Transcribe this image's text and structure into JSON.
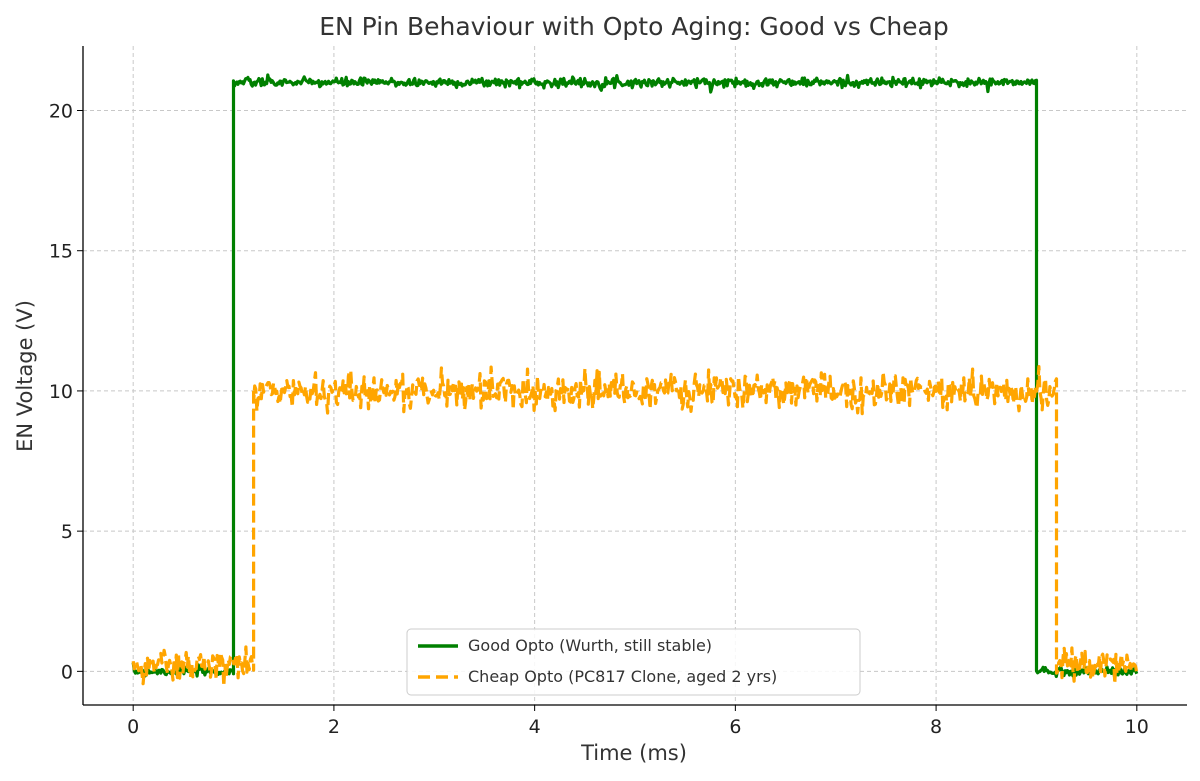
{
  "chart_data": {
    "type": "line",
    "title": "EN Pin Behaviour with Opto Aging: Good vs Cheap",
    "xlabel": "Time (ms)",
    "ylabel": "EN Voltage (V)",
    "xlim": [
      -0.5,
      10.5
    ],
    "ylim": [
      -1.2,
      22.3
    ],
    "xticks": [
      0,
      2,
      4,
      6,
      8,
      10
    ],
    "yticks": [
      0,
      5,
      10,
      15,
      20
    ],
    "grid": true,
    "legend_position": "bottom-center",
    "series": [
      {
        "name": "Good Opto (Wurth, still stable)",
        "color": "#008000",
        "style": "solid",
        "x": [
          0,
          1.0,
          1.0,
          9.0,
          9.0,
          10
        ],
        "y": [
          0,
          0,
          21,
          21,
          0,
          0
        ],
        "noise": 0.08
      },
      {
        "name": "Cheap Opto (PC817 Clone, aged 2 yrs)",
        "color": "#FFA500",
        "style": "dashed",
        "x": [
          0,
          1.2,
          1.2,
          9.2,
          9.2,
          10
        ],
        "y": [
          0.2,
          0.2,
          10,
          10,
          0.2,
          0.2
        ],
        "noise": 0.3
      }
    ]
  }
}
